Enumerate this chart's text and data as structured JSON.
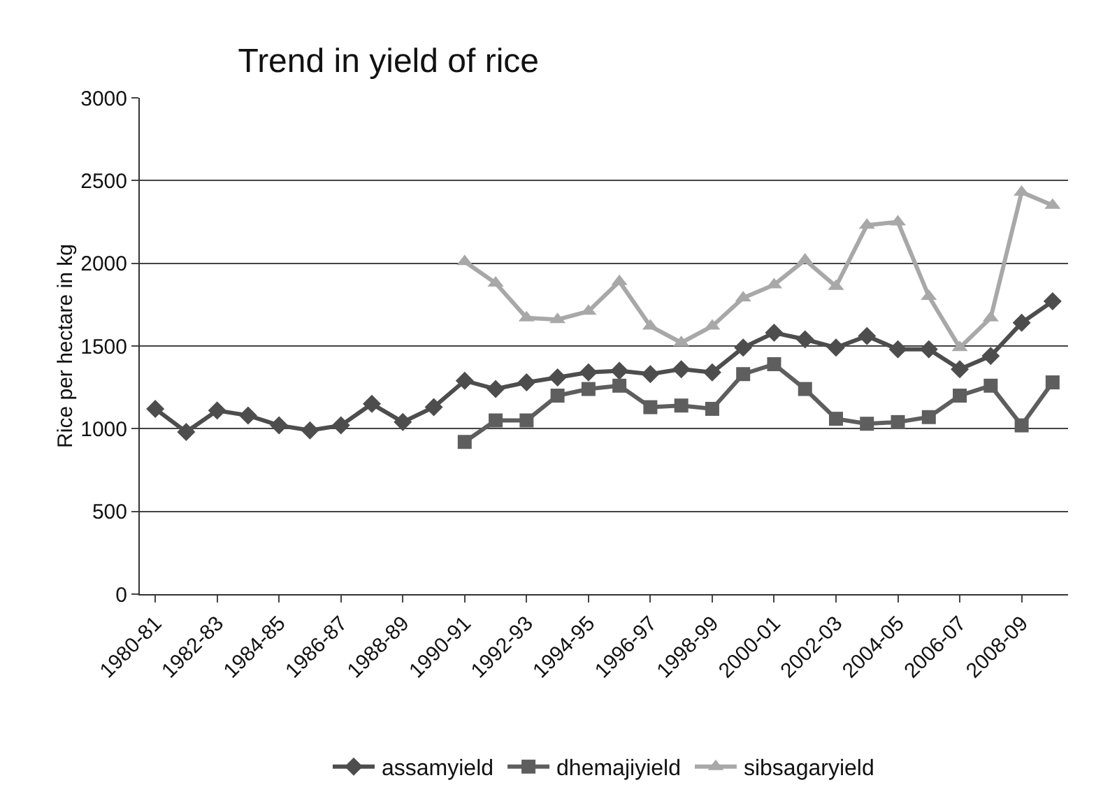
{
  "chart_data": {
    "type": "line",
    "title": "Trend in yield of rice",
    "ylabel": "Rice per hectare in kg",
    "categories": [
      "1980-81",
      null,
      "1982-83",
      null,
      "1984-85",
      null,
      "1986-87",
      null,
      "1988-89",
      null,
      "1990-91",
      null,
      "1992-93",
      null,
      "1994-95",
      null,
      "1996-97",
      null,
      "1998-99",
      null,
      "2000-01",
      null,
      "2002-03",
      null,
      "2004-05",
      null,
      "2006-07",
      null,
      "2008-09",
      null
    ],
    "series": [
      {
        "name": "assamyield",
        "color": "#4d4d4d",
        "marker": "diamond",
        "values": [
          1120,
          980,
          1110,
          1080,
          1020,
          990,
          1020,
          1150,
          1040,
          1130,
          1290,
          1240,
          1280,
          1310,
          1340,
          1350,
          1330,
          1360,
          1340,
          1490,
          1580,
          1540,
          1490,
          1560,
          1480,
          1480,
          1360,
          1440,
          1640,
          1770
        ]
      },
      {
        "name": "dhemajiyield",
        "color": "#5e5e5e",
        "marker": "square",
        "values": [
          null,
          null,
          null,
          null,
          null,
          null,
          null,
          null,
          null,
          null,
          920,
          1050,
          1050,
          1200,
          1240,
          1260,
          1130,
          1140,
          1120,
          1330,
          1390,
          1240,
          1060,
          1030,
          1040,
          1070,
          1200,
          1260,
          1020,
          1280
        ]
      },
      {
        "name": "sibsagaryield",
        "color": "#a8a8a8",
        "marker": "triangle",
        "values": [
          null,
          null,
          null,
          null,
          null,
          null,
          null,
          null,
          null,
          null,
          2010,
          1880,
          1670,
          1660,
          1710,
          1890,
          1620,
          1520,
          1620,
          1790,
          1870,
          2020,
          1860,
          2230,
          2250,
          1800,
          1490,
          1670,
          2430,
          2350
        ]
      }
    ],
    "ylim": [
      0,
      3000
    ],
    "yticks": [
      0,
      500,
      1000,
      1500,
      2000,
      2500,
      3000
    ],
    "grid": "y",
    "legend": "bottom",
    "line_style": "solid"
  }
}
